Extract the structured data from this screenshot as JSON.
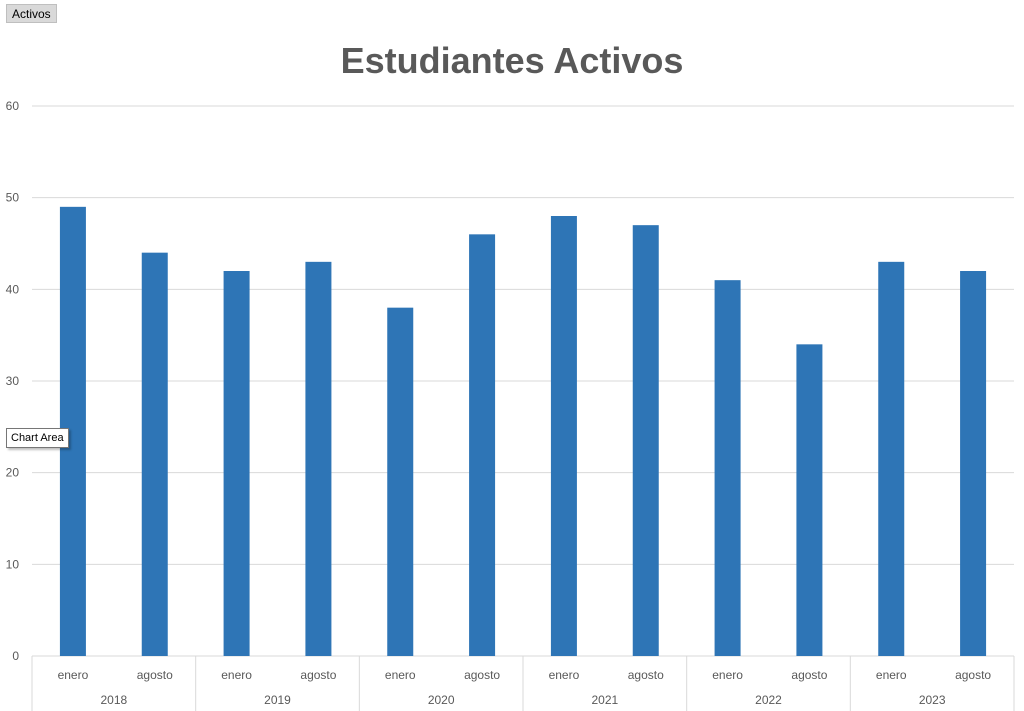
{
  "field_button": {
    "label": "Activos"
  },
  "tooltip": {
    "label": "Chart Area"
  },
  "colors": {
    "bar": "#2e75b6",
    "gridline": "#d9d9d9",
    "text": "#595959"
  },
  "chart_data": {
    "type": "bar",
    "title": "Estudiantes Activos",
    "xlabel": "",
    "ylabel": "",
    "ylim": [
      0,
      60
    ],
    "yticks": [
      0,
      10,
      20,
      30,
      40,
      50,
      60
    ],
    "grid": true,
    "categories": [
      "2018 enero",
      "2018 agosto",
      "2019 enero",
      "2019 agosto",
      "2020 enero",
      "2020 agosto",
      "2021 enero",
      "2021 agosto",
      "2022 enero",
      "2022 agosto",
      "2023 enero",
      "2023 agosto"
    ],
    "category_groups": [
      {
        "year": "2018",
        "months": [
          "enero",
          "agosto"
        ]
      },
      {
        "year": "2019",
        "months": [
          "enero",
          "agosto"
        ]
      },
      {
        "year": "2020",
        "months": [
          "enero",
          "agosto"
        ]
      },
      {
        "year": "2021",
        "months": [
          "enero",
          "agosto"
        ]
      },
      {
        "year": "2022",
        "months": [
          "enero",
          "agosto"
        ]
      },
      {
        "year": "2023",
        "months": [
          "enero",
          "agosto"
        ]
      }
    ],
    "values": [
      49,
      44,
      42,
      43,
      38,
      46,
      48,
      47,
      41,
      34,
      43,
      42
    ]
  }
}
